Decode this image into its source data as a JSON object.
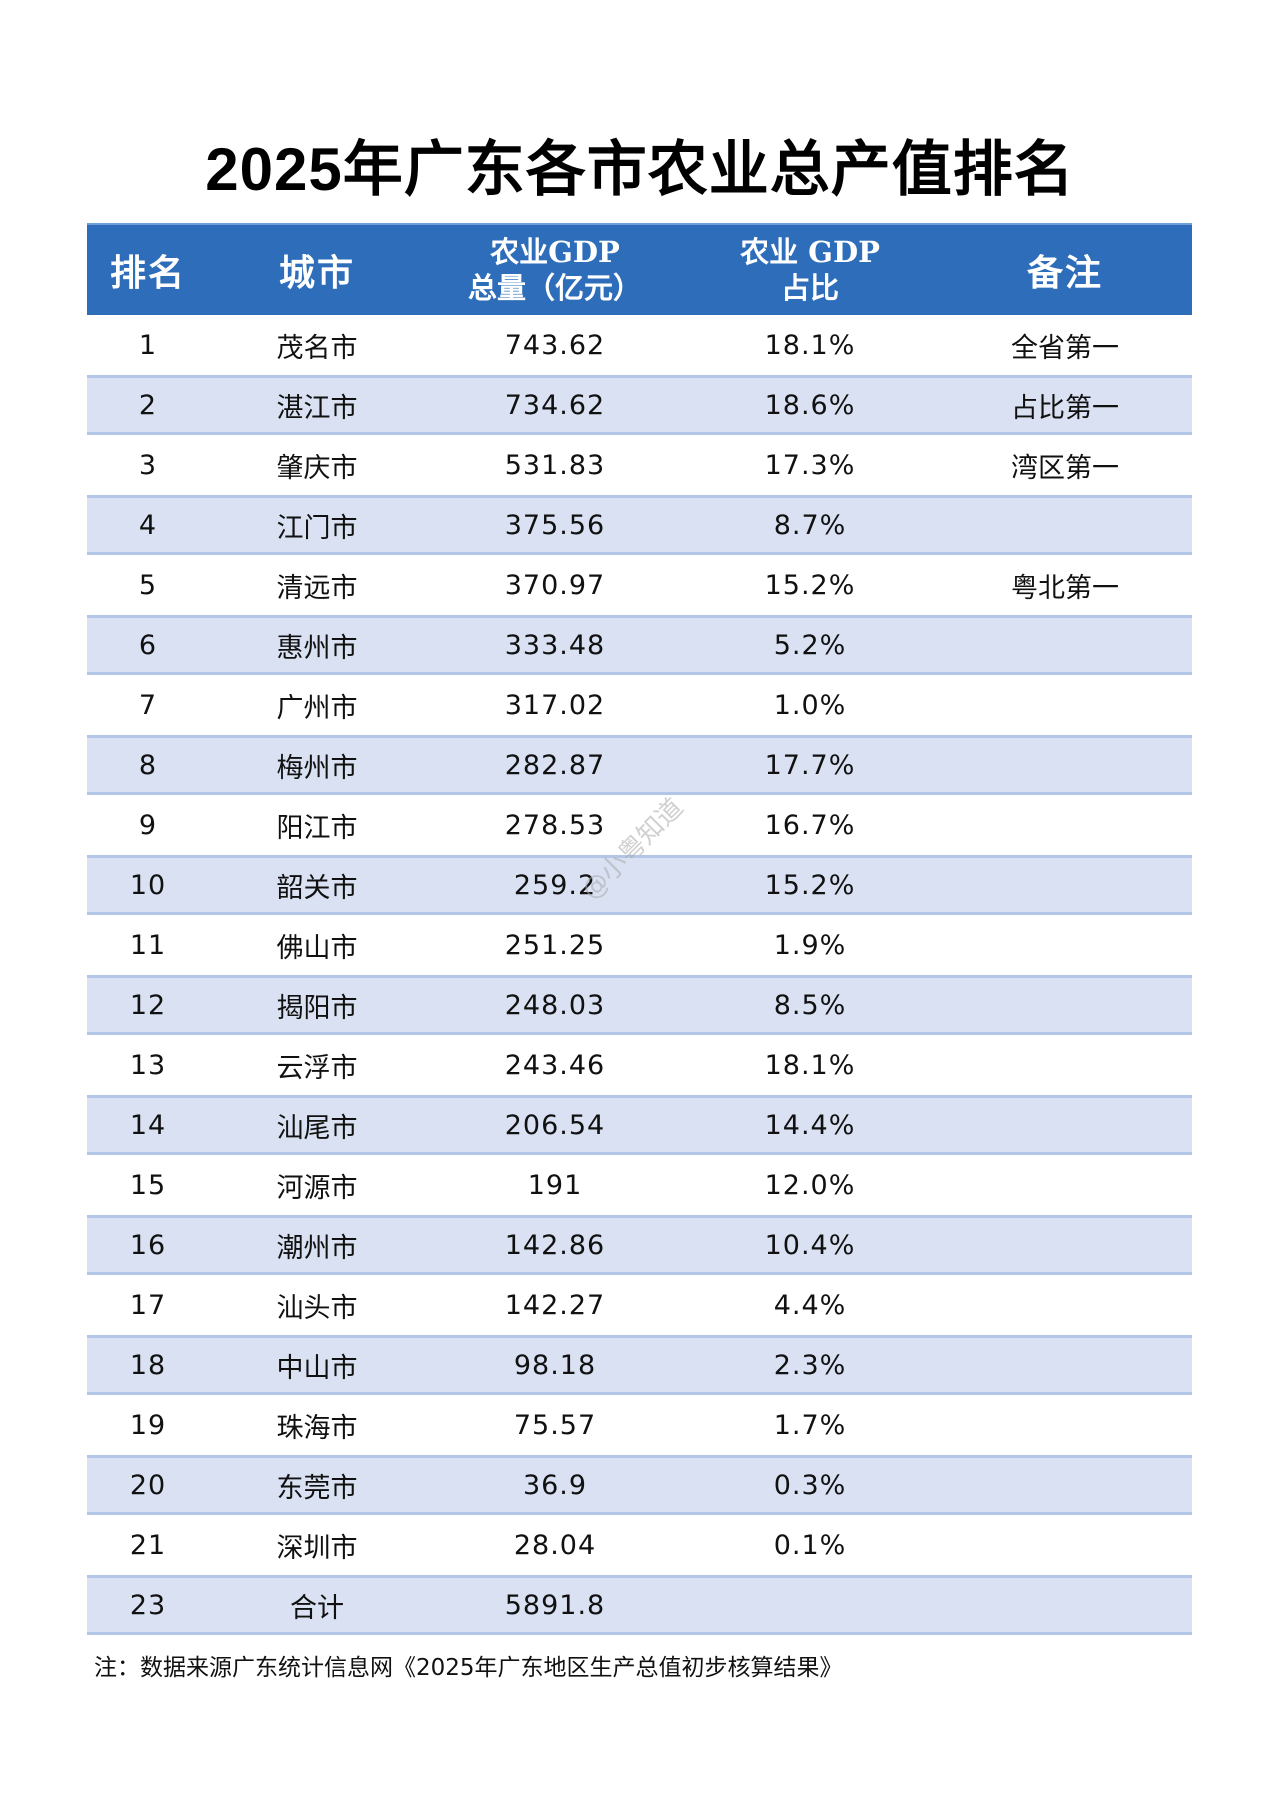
{
  "title": "2025年广东各市农业总产值排名",
  "table": {
    "headers": {
      "rank": "排名",
      "city": "城市",
      "gdp_line1": "农业GDP",
      "gdp_line2": "总量（亿元）",
      "share_line1": "农业 GDP",
      "share_line2": "占比",
      "remark": "备注"
    },
    "rows": [
      {
        "rank": "1",
        "city": "茂名市",
        "gdp": "743.62",
        "share": "18.1%",
        "remark": "全省第一"
      },
      {
        "rank": "2",
        "city": "湛江市",
        "gdp": "734.62",
        "share": "18.6%",
        "remark": "占比第一"
      },
      {
        "rank": "3",
        "city": "肇庆市",
        "gdp": "531.83",
        "share": "17.3%",
        "remark": "湾区第一"
      },
      {
        "rank": "4",
        "city": "江门市",
        "gdp": "375.56",
        "share": "8.7%",
        "remark": ""
      },
      {
        "rank": "5",
        "city": "清远市",
        "gdp": "370.97",
        "share": "15.2%",
        "remark": "粤北第一"
      },
      {
        "rank": "6",
        "city": "惠州市",
        "gdp": "333.48",
        "share": "5.2%",
        "remark": ""
      },
      {
        "rank": "7",
        "city": "广州市",
        "gdp": "317.02",
        "share": "1.0%",
        "remark": ""
      },
      {
        "rank": "8",
        "city": "梅州市",
        "gdp": "282.87",
        "share": "17.7%",
        "remark": ""
      },
      {
        "rank": "9",
        "city": "阳江市",
        "gdp": "278.53",
        "share": "16.7%",
        "remark": ""
      },
      {
        "rank": "10",
        "city": "韶关市",
        "gdp": "259.2",
        "share": "15.2%",
        "remark": ""
      },
      {
        "rank": "11",
        "city": "佛山市",
        "gdp": "251.25",
        "share": "1.9%",
        "remark": ""
      },
      {
        "rank": "12",
        "city": "揭阳市",
        "gdp": "248.03",
        "share": "8.5%",
        "remark": ""
      },
      {
        "rank": "13",
        "city": "云浮市",
        "gdp": "243.46",
        "share": "18.1%",
        "remark": ""
      },
      {
        "rank": "14",
        "city": "汕尾市",
        "gdp": "206.54",
        "share": "14.4%",
        "remark": ""
      },
      {
        "rank": "15",
        "city": "河源市",
        "gdp": "191",
        "share": "12.0%",
        "remark": ""
      },
      {
        "rank": "16",
        "city": "潮州市",
        "gdp": "142.86",
        "share": "10.4%",
        "remark": ""
      },
      {
        "rank": "17",
        "city": "汕头市",
        "gdp": "142.27",
        "share": "4.4%",
        "remark": ""
      },
      {
        "rank": "18",
        "city": "中山市",
        "gdp": "98.18",
        "share": "2.3%",
        "remark": ""
      },
      {
        "rank": "19",
        "city": "珠海市",
        "gdp": "75.57",
        "share": "1.7%",
        "remark": ""
      },
      {
        "rank": "20",
        "city": "东莞市",
        "gdp": "36.9",
        "share": "0.3%",
        "remark": ""
      },
      {
        "rank": "21",
        "city": "深圳市",
        "gdp": "28.04",
        "share": "0.1%",
        "remark": ""
      },
      {
        "rank": "23",
        "city": "合计",
        "gdp": "5891.8",
        "share": "",
        "remark": ""
      }
    ]
  },
  "note": "注：数据来源广东统计信息网《2025年广东地区生产总值初步核算结果》",
  "watermark": "@小粤知道",
  "colors": {
    "header_bg": "#2e6dba",
    "stripe_bg": "#d9e1f2",
    "stripe_border": "#b4c6e7"
  }
}
